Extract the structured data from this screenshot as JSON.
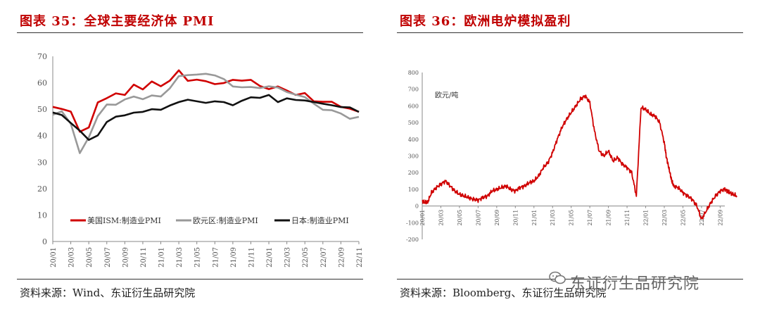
{
  "left": {
    "title": "图表 35：全球主要经济体 PMI",
    "source": "资料来源：Wind、东证衍生品研究院"
  },
  "right": {
    "title": "图表 36：欧洲电炉模拟盈利",
    "source": "资料来源：Bloomberg、东证衍生品研究院"
  },
  "watermark": "东证衍生品研究院",
  "chart_data": [
    {
      "type": "line",
      "title": "",
      "ylim": [
        0,
        70
      ],
      "yticks": [
        0,
        10,
        20,
        30,
        40,
        50,
        60,
        70
      ],
      "xticks": [
        "20/01",
        "20/03",
        "20/05",
        "20/07",
        "20/09",
        "20/11",
        "21/01",
        "21/03",
        "21/05",
        "21/07",
        "21/09",
        "21/11",
        "22/01",
        "22/03",
        "22/05",
        "22/07",
        "22/09",
        "22/11"
      ],
      "x": [
        "20/01",
        "20/02",
        "20/03",
        "20/04",
        "20/05",
        "20/06",
        "20/07",
        "20/08",
        "20/09",
        "20/10",
        "20/11",
        "20/12",
        "21/01",
        "21/02",
        "21/03",
        "21/04",
        "21/05",
        "21/06",
        "21/07",
        "21/08",
        "21/09",
        "21/10",
        "21/11",
        "21/12",
        "22/01",
        "22/02",
        "22/03",
        "22/04",
        "22/05",
        "22/06",
        "22/07",
        "22/08",
        "22/09",
        "22/10",
        "22/11"
      ],
      "legend_position": "bottom-inside",
      "series": [
        {
          "name": "美国ISM:制造业PMI",
          "color": "#d00000",
          "values": [
            50.9,
            50.1,
            49.1,
            41.5,
            43.1,
            52.6,
            54.2,
            56.0,
            55.4,
            59.3,
            57.5,
            60.5,
            58.7,
            60.8,
            64.7,
            60.7,
            61.2,
            60.6,
            59.5,
            59.9,
            61.1,
            60.8,
            61.1,
            58.8,
            57.6,
            58.6,
            57.1,
            55.4,
            56.1,
            53.0,
            52.8,
            52.8,
            50.9,
            50.2,
            49.0
          ]
        },
        {
          "name": "欧元区:制造业PMI",
          "color": "#999999",
          "values": [
            47.9,
            49.2,
            44.5,
            33.4,
            39.4,
            47.4,
            51.8,
            51.7,
            53.7,
            54.8,
            53.8,
            55.2,
            54.8,
            57.9,
            62.5,
            62.9,
            63.1,
            63.4,
            62.8,
            61.4,
            58.6,
            58.3,
            58.4,
            58.0,
            58.7,
            58.2,
            56.5,
            55.5,
            54.6,
            52.1,
            49.8,
            49.6,
            48.4,
            46.4,
            47.1
          ]
        },
        {
          "name": "日本:制造业PMI",
          "color": "#111111",
          "values": [
            48.8,
            47.8,
            44.8,
            41.9,
            38.4,
            40.1,
            45.2,
            47.2,
            47.7,
            48.7,
            49.0,
            50.0,
            49.8,
            51.4,
            52.7,
            53.6,
            53.0,
            52.4,
            53.0,
            52.7,
            51.5,
            53.2,
            54.5,
            54.3,
            55.4,
            52.7,
            54.1,
            53.5,
            53.3,
            52.7,
            52.1,
            51.5,
            50.8,
            50.7,
            49.0
          ]
        }
      ]
    },
    {
      "type": "line",
      "title": "",
      "ylabel": "欧元/吨",
      "ylim": [
        -200,
        800
      ],
      "yticks": [
        -200,
        -100,
        0,
        100,
        200,
        300,
        400,
        500,
        600,
        700,
        800
      ],
      "xticks": [
        "20/01",
        "20/03",
        "20/05",
        "20/07",
        "20/09",
        "20/11",
        "21/01",
        "21/03",
        "21/05",
        "21/07",
        "21/09",
        "21/11",
        "22/01",
        "22/03",
        "22/05",
        "22/07",
        "22/09"
      ],
      "series": [
        {
          "name": "",
          "color": "#d00000",
          "x": [
            0,
            0.3,
            0.6,
            1,
            1.5,
            2,
            2.5,
            3,
            3.5,
            4,
            4.5,
            5,
            5.5,
            6,
            6.5,
            7,
            7.5,
            8,
            8.5,
            9,
            9.5,
            10,
            10.5,
            11,
            11.5,
            12,
            12.5,
            13,
            13.5,
            14,
            14.5,
            15,
            15.5,
            16,
            16.5,
            17,
            17.5,
            18,
            18.5,
            19,
            19.5,
            20,
            20.5,
            21,
            21.5,
            22,
            22.5,
            23,
            23.5,
            24,
            24.5,
            25,
            25.5,
            26,
            26.2,
            26.4,
            26.6,
            26.8,
            27,
            27.5,
            28,
            28.5,
            29,
            29.5,
            30,
            30.5,
            31,
            31.5,
            32,
            32.5,
            32.8,
            33,
            33.4,
            33.8
          ],
          "values": [
            30,
            20,
            25,
            80,
            110,
            130,
            150,
            120,
            90,
            70,
            60,
            50,
            40,
            35,
            50,
            60,
            90,
            100,
            110,
            120,
            100,
            90,
            110,
            120,
            140,
            150,
            180,
            230,
            260,
            320,
            400,
            470,
            520,
            560,
            600,
            640,
            660,
            620,
            450,
            330,
            300,
            330,
            270,
            290,
            250,
            230,
            200,
            60,
            590,
            580,
            550,
            540,
            500,
            380,
            300,
            250,
            200,
            150,
            120,
            110,
            80,
            60,
            40,
            0,
            -80,
            -30,
            20,
            60,
            90,
            100,
            90,
            80,
            70,
            60
          ]
        }
      ]
    }
  ]
}
